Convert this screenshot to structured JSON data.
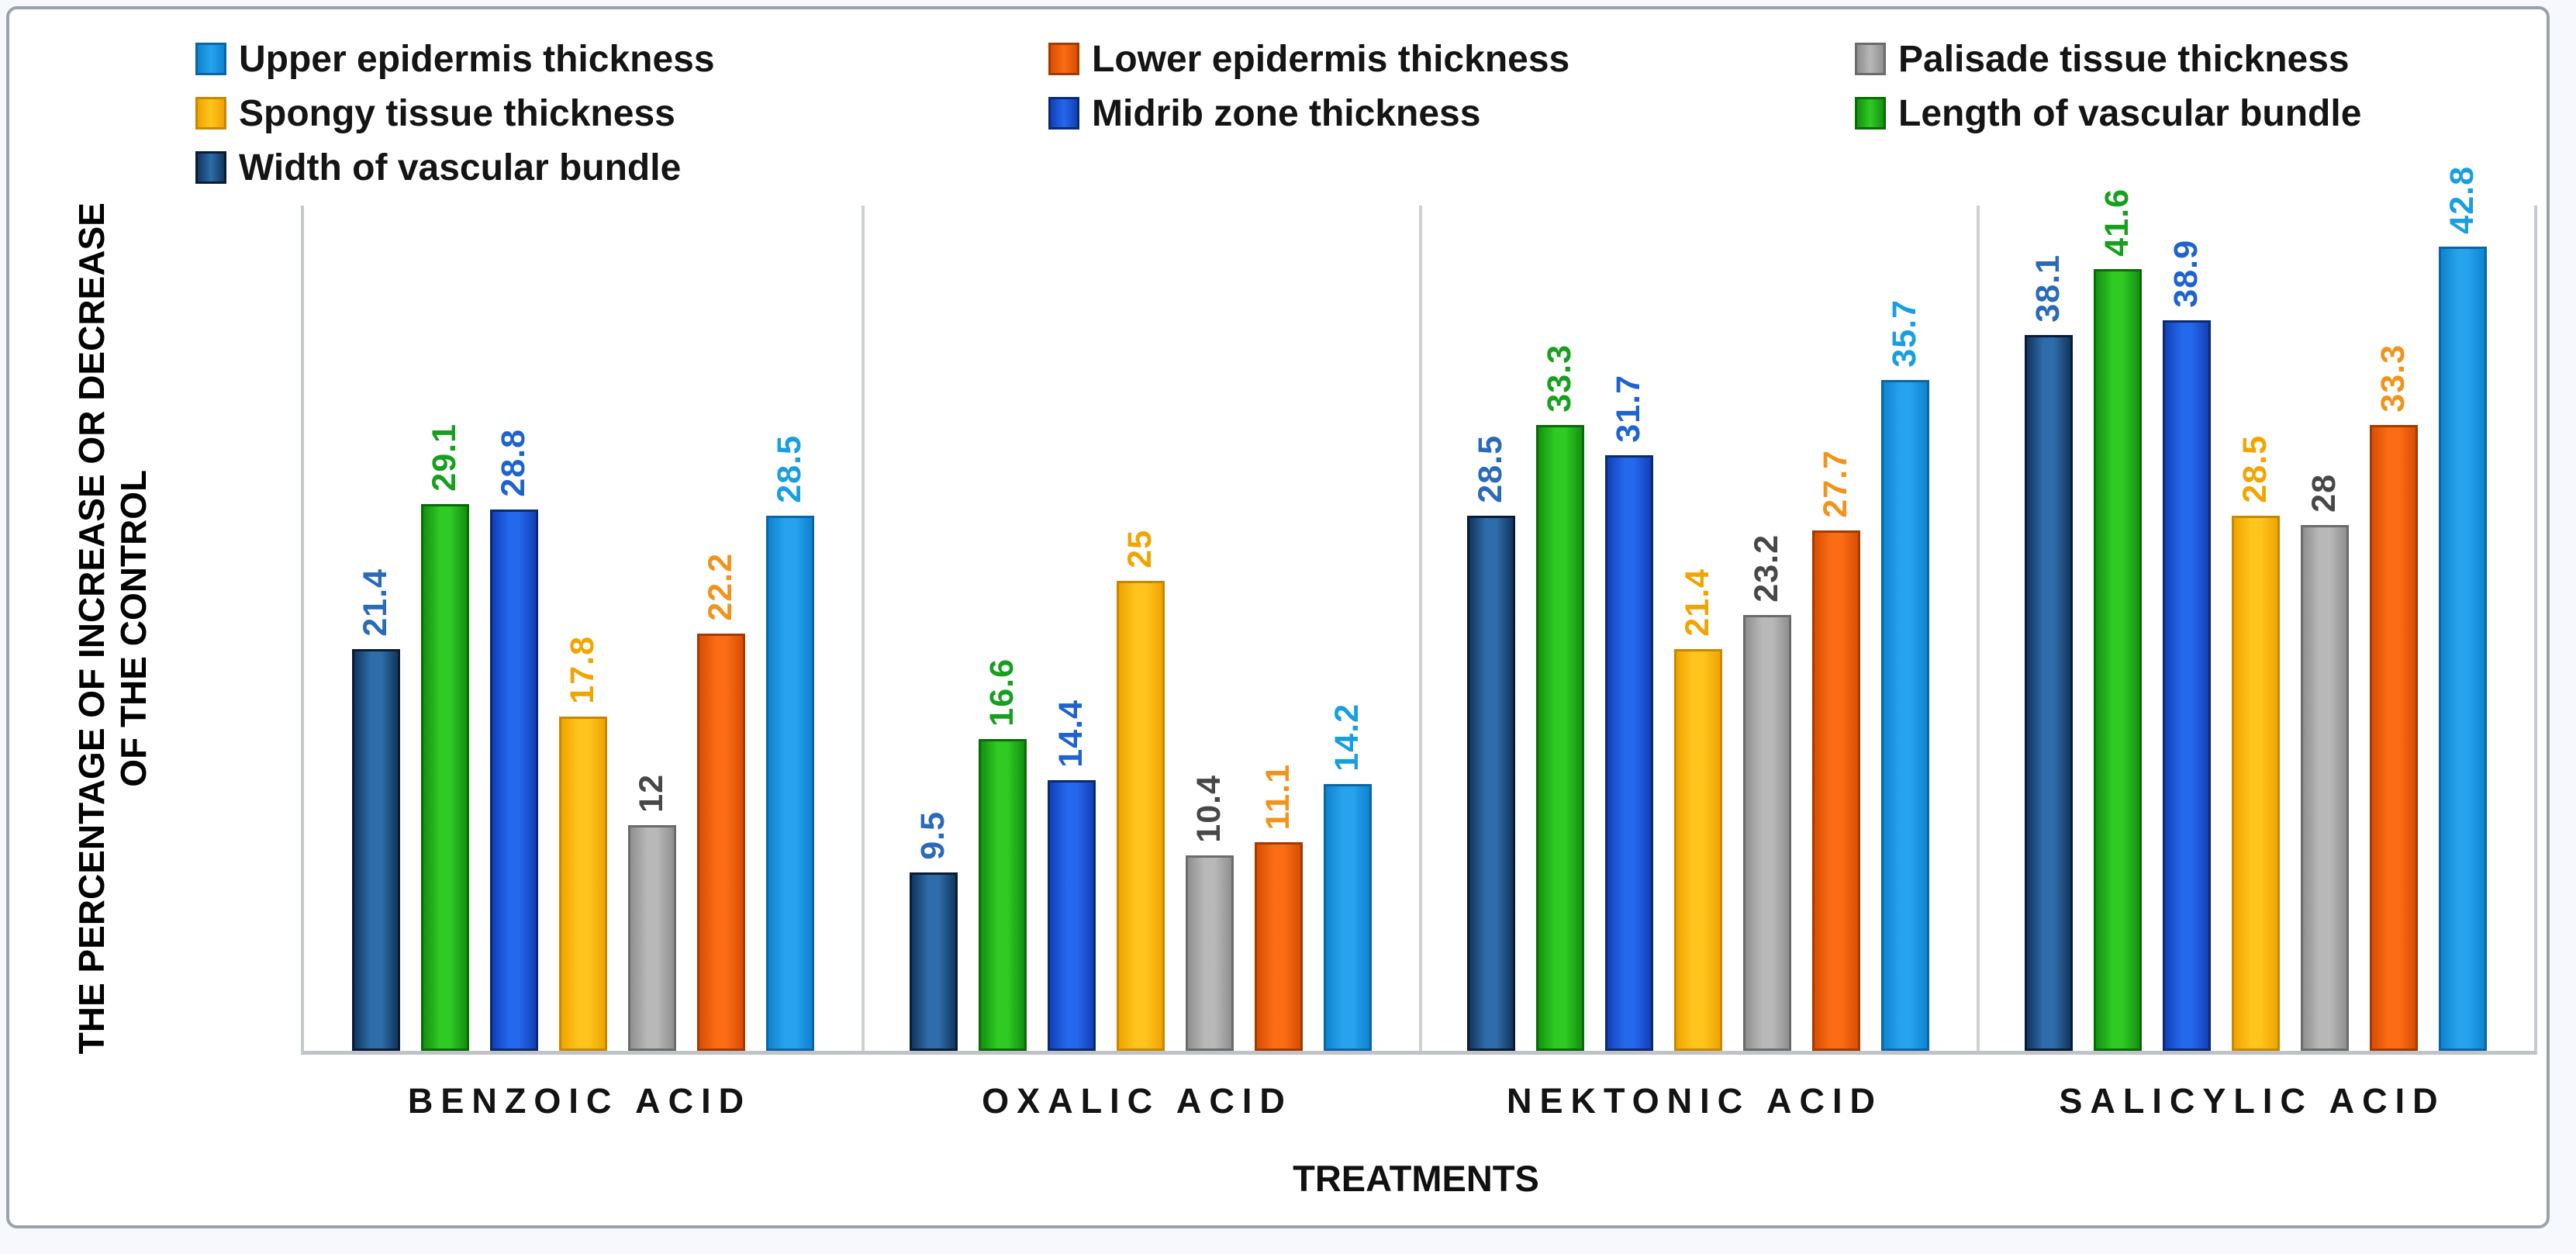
{
  "figure": {
    "background": "#ffffff",
    "outer_background": "#f6f8fd",
    "border_color": "#9aa1a9",
    "separator_color": "#cdd0d4",
    "axis_line_color": "#c6c9cd"
  },
  "y_axis": {
    "title_line1": "THE PERCENTAGE OF INCREASE OR DECREASE",
    "title_line2": "OF THE CONTROL"
  },
  "x_axis": {
    "title": "TREATMENTS"
  },
  "legend": {
    "position": "top",
    "items": [
      {
        "label": "Upper epidermis thickness",
        "series_key": "upper"
      },
      {
        "label": "Lower epidermis thickness",
        "series_key": "lower"
      },
      {
        "label": "Palisade tissue thickness",
        "series_key": "palisade"
      },
      {
        "label": "Spongy tissue thickness",
        "series_key": "spongy"
      },
      {
        "label": "Midrib zone thickness",
        "series_key": "midrib"
      },
      {
        "label": "Length of vascular bundle",
        "series_key": "length"
      },
      {
        "label": "Width of vascular bundle",
        "series_key": "width"
      }
    ]
  },
  "chart_data": {
    "type": "bar",
    "title": "",
    "xlabel": "TREATMENTS",
    "ylabel": "THE PERCENTAGE OF INCREASE OR DECREASE OF THE CONTROL",
    "ylim": [
      0,
      45
    ],
    "grid": "off",
    "legend_position": "top",
    "value_labels": "rotated 90deg above bars, colored per series",
    "categories": [
      "BENZOIC ACID",
      "OXALIC ACID",
      "NEKTONIC ACID",
      "SALICYLIC ACID"
    ],
    "series": [
      {
        "key": "width",
        "name": "Width of vascular bundle",
        "values": [
          21.4,
          9.5,
          28.5,
          38.1
        ],
        "color": "#12365f",
        "color_center": "#2e6da9",
        "border_color": "#081c36",
        "label_color": "#2a6ab8"
      },
      {
        "key": "length",
        "name": "Length of vascular bundle",
        "values": [
          29.1,
          16.6,
          33.3,
          41.6
        ],
        "color": "#149110",
        "color_center": "#2fca24",
        "border_color": "#0a6a06",
        "label_color": "#16a01e"
      },
      {
        "key": "midrib",
        "name": "Midrib zone thickness",
        "values": [
          28.8,
          14.4,
          31.7,
          38.9
        ],
        "color": "#1240b8",
        "color_center": "#2468ec",
        "border_color": "#0c2a6e",
        "label_color": "#1e63cf"
      },
      {
        "key": "spongy",
        "name": "Spongy tissue thickness",
        "values": [
          17.8,
          25,
          21.4,
          28.5
        ],
        "color": "#f0a400",
        "color_center": "#ffc41e",
        "border_color": "#c88700",
        "label_color": "#f2a400"
      },
      {
        "key": "palisade",
        "name": "Palisade tissue thickness",
        "values": [
          12,
          10.4,
          23.2,
          28
        ],
        "color": "#8f8f8f",
        "color_center": "#b8b8b8",
        "border_color": "#6b6b6b",
        "label_color": "#474747"
      },
      {
        "key": "lower",
        "name": "Lower epidermis thickness",
        "values": [
          22.2,
          11.1,
          27.7,
          33.3
        ],
        "color": "#d94e04",
        "color_center": "#fb6c14",
        "border_color": "#a33a00",
        "label_color": "#f0941c"
      },
      {
        "key": "upper",
        "name": "Upper epidermis thickness",
        "values": [
          28.5,
          14.2,
          35.7,
          42.8
        ],
        "color": "#0f83cf",
        "color_center": "#27a3ee",
        "border_color": "#0a66a3",
        "label_color": "#189fe0"
      }
    ]
  }
}
